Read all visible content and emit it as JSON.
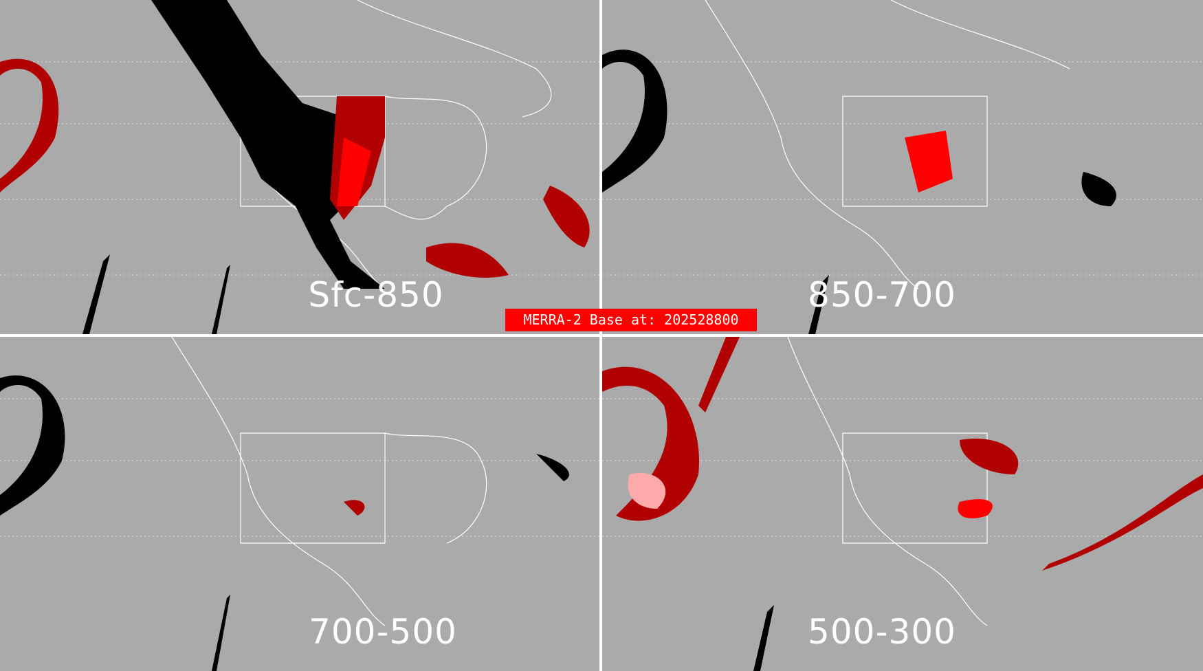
{
  "title": "MERRA-2 Base at: 202528800",
  "colors": {
    "background": "#aaaaaa",
    "black": "#000000",
    "red": "#ff0000",
    "dark_red": "#b00000",
    "pink": "#ffaaaa",
    "coastlines": "#ffffff",
    "title_bg": "#ff0000"
  },
  "panels": [
    {
      "label": "Sfc-850"
    },
    {
      "label": "850-700"
    },
    {
      "label": "700-500"
    },
    {
      "label": "500-300"
    }
  ]
}
